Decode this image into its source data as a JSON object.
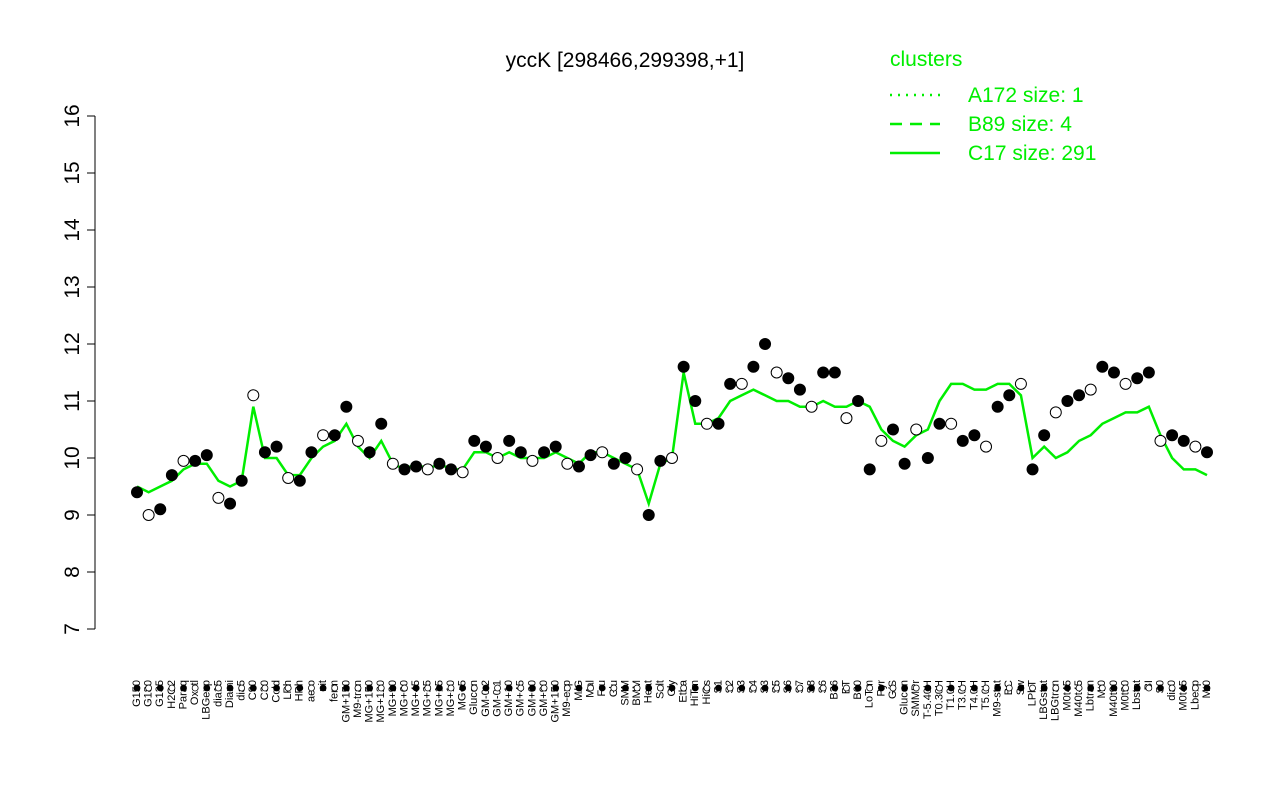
{
  "chart_data": {
    "type": "line",
    "title": "yccK [298466,299398,+1]",
    "categories": [
      "G150",
      "G180",
      "G135",
      "H2O2",
      "Paraq",
      "Oxctl",
      "LBGexp",
      "dia15",
      "Diami",
      "dia5",
      "C90",
      "C30",
      "Cold",
      "LPh",
      "HPh",
      "aero",
      "nit",
      "ferm",
      "GM+150",
      "M9-tran",
      "MG+150",
      "MG+120",
      "MG+90",
      "MG+60",
      "MG+45",
      "MG+25",
      "MG+15",
      "MG+10",
      "MG+5",
      "Glucon",
      "GM-0.2",
      "GM-0.1",
      "GM+10",
      "GM+45",
      "GM+60",
      "GM+90",
      "GM+150",
      "M9-exp",
      "M/G",
      "Mal",
      "Fru",
      "Glu",
      "SMM",
      "BMM",
      "Heat",
      "Salt",
      "Gly",
      "Etha",
      "HiTm",
      "HiOs",
      "S1",
      "S2",
      "S3",
      "S4",
      "S3",
      "S5",
      "S6",
      "S7",
      "S8",
      "S6",
      "B36",
      "BT",
      "B60",
      "LoTm",
      "Pyr",
      "G/S",
      "Glucon",
      "SMMPr",
      "T-5.40H",
      "T0.30H",
      "T1.0H",
      "T3.0H",
      "T4.0H",
      "T5.0H",
      "M9-stat",
      "BC",
      "Sw",
      "LPhT",
      "LBGstat",
      "LBGtran",
      "M0t45",
      "M40t45",
      "Lbtran",
      "Mt0",
      "M40t90",
      "M0t90",
      "Lbstat",
      "BI",
      "S0",
      "dia0",
      "M0t45",
      "Lbexp",
      "Mt0"
    ],
    "points": {
      "color": "#000000",
      "values": [
        9.4,
        9.0,
        9.1,
        9.7,
        9.95,
        9.95,
        10.05,
        9.3,
        9.2,
        9.6,
        11.1,
        10.1,
        10.2,
        9.65,
        9.6,
        10.1,
        10.4,
        10.4,
        10.9,
        10.3,
        10.1,
        10.6,
        9.9,
        9.8,
        9.85,
        9.8,
        9.9,
        9.8,
        9.75,
        10.3,
        10.2,
        10.0,
        10.3,
        10.1,
        9.95,
        10.1,
        10.2,
        9.9,
        9.85,
        10.05,
        10.1,
        9.9,
        10.0,
        9.8,
        9.0,
        9.95,
        10.0,
        11.6,
        11.0,
        10.6,
        10.6,
        11.3,
        11.3,
        11.6,
        12.0,
        11.5,
        11.4,
        11.2,
        10.9,
        11.5,
        11.5,
        10.7,
        11.0,
        9.8,
        10.3,
        10.5,
        9.9,
        10.5,
        10.0,
        10.6,
        10.6,
        10.3,
        10.4,
        10.2,
        10.9,
        11.1,
        11.3,
        9.8,
        10.4,
        10.8,
        11.0,
        11.1,
        11.2,
        11.6,
        11.5,
        11.3,
        11.4,
        11.5,
        10.3,
        10.4,
        10.3,
        10.2,
        10.1
      ]
    },
    "series": [
      {
        "name": "C17 size: 291",
        "color": "#00ee00",
        "dash": "solid",
        "values": [
          9.5,
          9.4,
          9.5,
          9.6,
          9.8,
          9.9,
          9.9,
          9.6,
          9.5,
          9.6,
          10.9,
          10.0,
          10.0,
          9.7,
          9.7,
          10.0,
          10.2,
          10.3,
          10.6,
          10.2,
          10.0,
          10.3,
          9.9,
          9.8,
          9.9,
          9.8,
          9.9,
          9.8,
          9.8,
          10.1,
          10.1,
          10.0,
          10.1,
          10.0,
          10.0,
          10.0,
          10.1,
          10.0,
          9.9,
          10.1,
          10.1,
          10.0,
          9.9,
          9.8,
          9.2,
          9.9,
          10.0,
          11.5,
          10.6,
          10.6,
          10.7,
          11.0,
          11.1,
          11.2,
          11.1,
          11.0,
          11.0,
          10.9,
          10.9,
          11.0,
          10.9,
          10.9,
          11.0,
          10.9,
          10.5,
          10.3,
          10.2,
          10.4,
          10.5,
          11.0,
          11.3,
          11.3,
          11.2,
          11.2,
          11.3,
          11.3,
          11.1,
          10.0,
          10.2,
          10.0,
          10.1,
          10.3,
          10.4,
          10.6,
          10.7,
          10.8,
          10.8,
          10.9,
          10.4,
          10.0,
          9.8,
          9.8,
          9.7
        ]
      }
    ],
    "legend": {
      "title": "clusters",
      "position": "top-right",
      "color": "#00ee00",
      "items": [
        {
          "name": "A172 size: 1",
          "dash": "dotted"
        },
        {
          "name": "B89 size: 4",
          "dash": "dashed"
        }
      ]
    },
    "ylim": [
      7,
      16
    ],
    "yticks": [
      7,
      8,
      9,
      10,
      11,
      12,
      13,
      14,
      15,
      16
    ]
  }
}
